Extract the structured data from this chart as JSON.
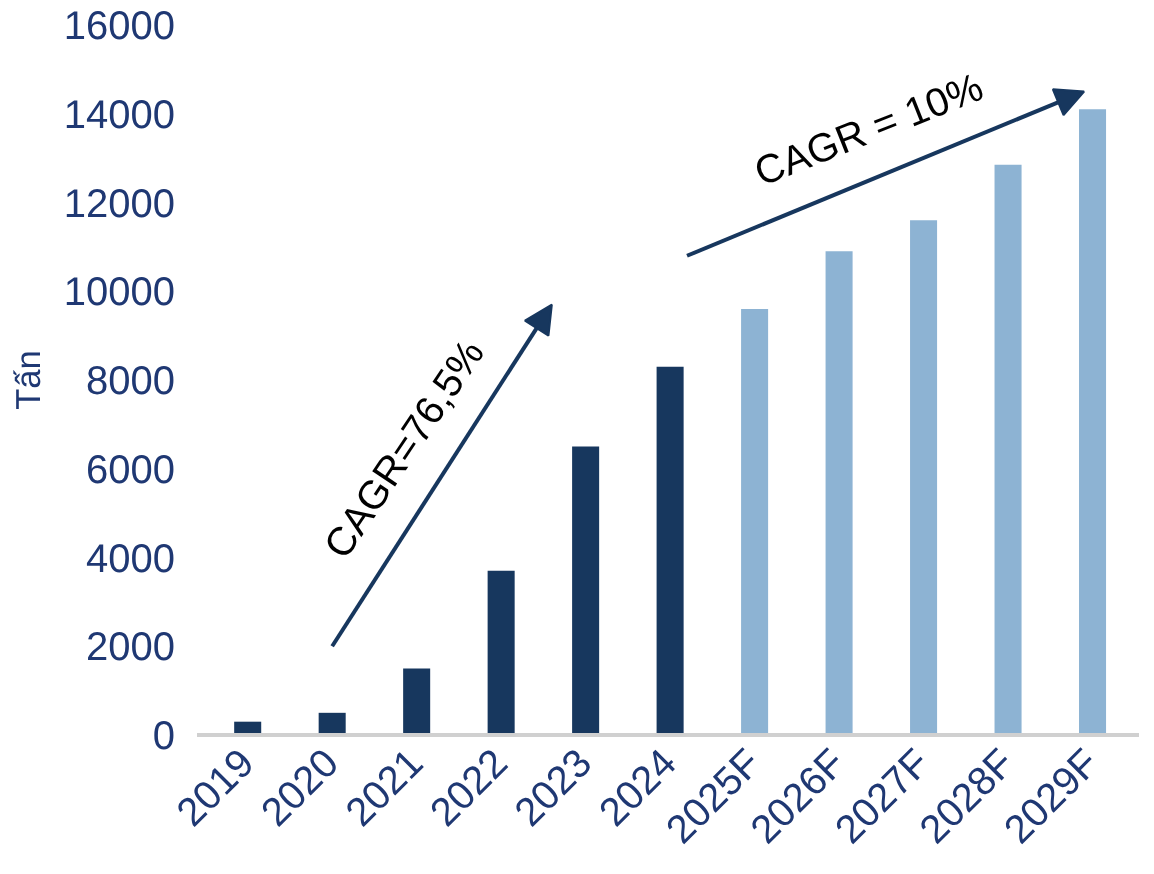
{
  "chart_data": {
    "type": "bar",
    "ylabel": "Tấn",
    "categories": [
      "2019",
      "2020",
      "2021",
      "2022",
      "2023",
      "2024",
      "2025F",
      "2026F",
      "2027F",
      "2028F",
      "2029F"
    ],
    "values": [
      300,
      500,
      1500,
      3700,
      6500,
      8300,
      9600,
      10900,
      11600,
      12850,
      14100
    ],
    "colors": [
      "#17375e",
      "#17375e",
      "#17375e",
      "#17375e",
      "#17375e",
      "#17375e",
      "#8db3d3",
      "#8db3d3",
      "#8db3d3",
      "#8db3d3",
      "#8db3d3"
    ],
    "ylim": [
      0,
      16000
    ],
    "yticks": [
      0,
      2000,
      4000,
      6000,
      8000,
      10000,
      12000,
      14000,
      16000
    ],
    "annotations": [
      "CAGR=76,5%",
      "CAGR = 10%"
    ],
    "grid": false
  }
}
